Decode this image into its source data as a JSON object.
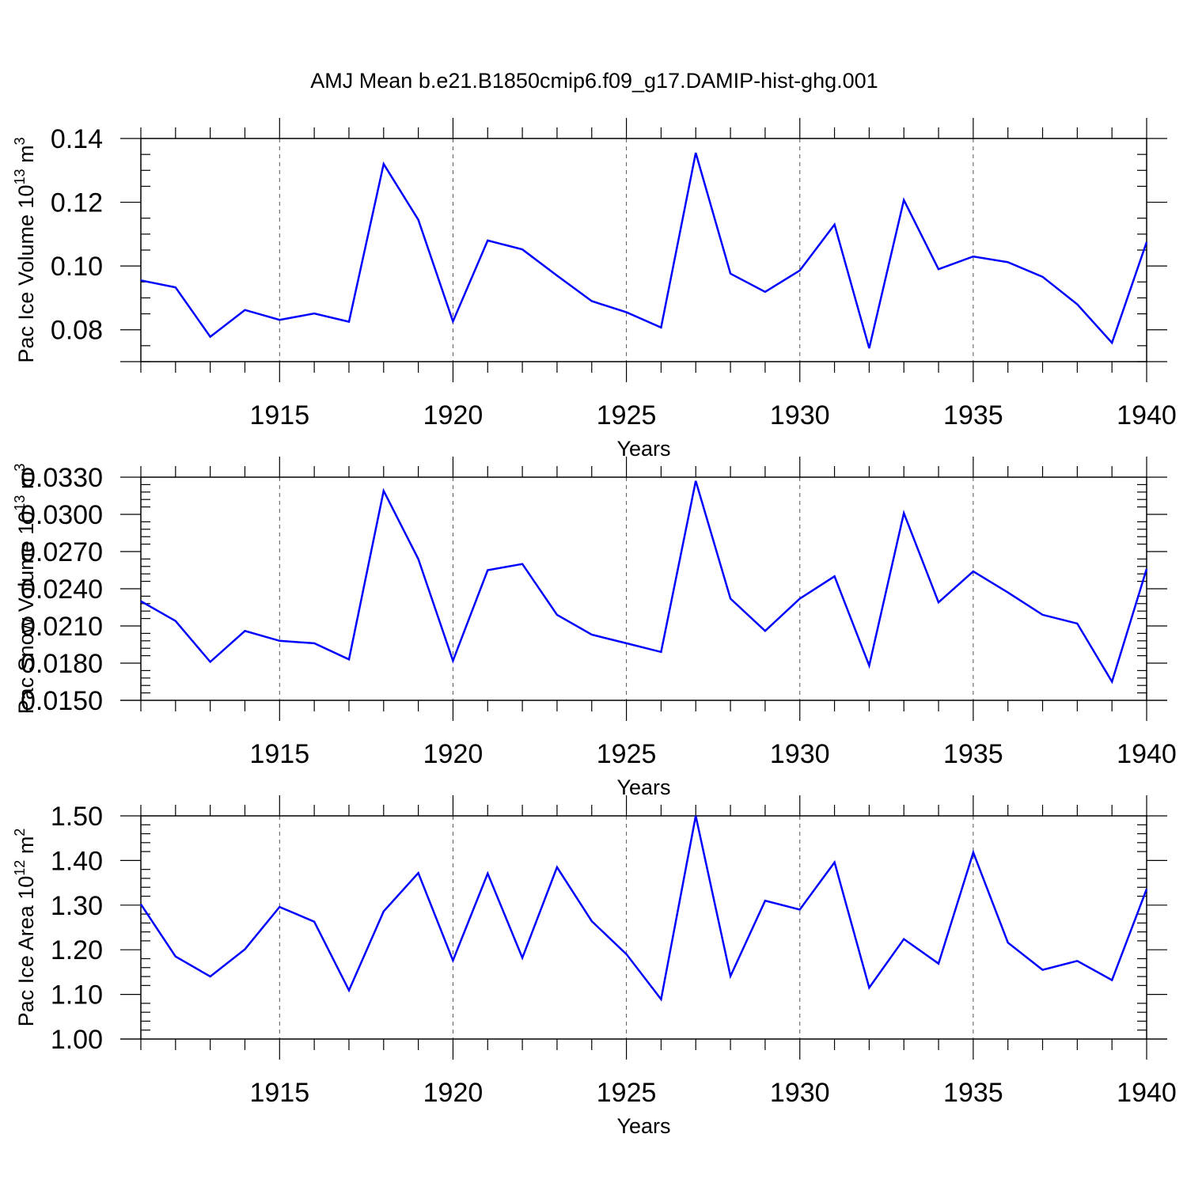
{
  "title": "AMJ Mean b.e21.B1850cmip6.f09_g17.DAMIP-hist-ghg.001",
  "series_color": "#0000ff",
  "chart_data": [
    {
      "type": "line",
      "ylabel": "Pac Ice Volume 10",
      "ylabel_exp": "13",
      "ylabel_unit": " m",
      "ylabel_unit_exp": "3",
      "xlabel": "Years",
      "xlim": [
        1911,
        1940
      ],
      "ylim": [
        0.07,
        0.14
      ],
      "yticks": [
        0.08,
        0.1,
        0.12,
        0.14
      ],
      "ytick_labels": [
        "0.08",
        "0.10",
        "0.12",
        "0.14"
      ],
      "yminor": 0.005,
      "xticks": [
        1915,
        1920,
        1925,
        1930,
        1935,
        1940
      ],
      "xtick_labels": [
        "1915",
        "1920",
        "1925",
        "1930",
        "1935",
        "1940"
      ],
      "x": [
        1911,
        1912,
        1913,
        1914,
        1915,
        1916,
        1917,
        1918,
        1919,
        1920,
        1921,
        1922,
        1923,
        1924,
        1925,
        1926,
        1927,
        1928,
        1929,
        1930,
        1931,
        1932,
        1933,
        1934,
        1935,
        1936,
        1937,
        1938,
        1939,
        1940
      ],
      "values": [
        0.0955,
        0.0933,
        0.0778,
        0.0862,
        0.0831,
        0.0851,
        0.0825,
        0.132,
        0.1145,
        0.0826,
        0.108,
        0.1052,
        0.097,
        0.089,
        0.0855,
        0.0807,
        0.1355,
        0.0976,
        0.0919,
        0.0986,
        0.113,
        0.0742,
        0.1207,
        0.099,
        0.103,
        0.1012,
        0.0966,
        0.088,
        0.0759,
        0.1075
      ]
    },
    {
      "type": "line",
      "ylabel": "Pac Snow Volume 10",
      "ylabel_exp": "13",
      "ylabel_unit": " m",
      "ylabel_unit_exp": "3",
      "xlabel": "Years",
      "xlim": [
        1911,
        1940
      ],
      "ylim": [
        0.015,
        0.033
      ],
      "yticks": [
        0.015,
        0.018,
        0.021,
        0.024,
        0.027,
        0.03,
        0.033
      ],
      "ytick_labels": [
        "0.0150",
        "0.0180",
        "0.0210",
        "0.0240",
        "0.0270",
        "0.0300",
        "0.0330"
      ],
      "yminor": 0.0006,
      "xticks": [
        1915,
        1920,
        1925,
        1930,
        1935,
        1940
      ],
      "xtick_labels": [
        "1915",
        "1920",
        "1925",
        "1930",
        "1935",
        "1940"
      ],
      "x": [
        1911,
        1912,
        1913,
        1914,
        1915,
        1916,
        1917,
        1918,
        1919,
        1920,
        1921,
        1922,
        1923,
        1924,
        1925,
        1926,
        1927,
        1928,
        1929,
        1930,
        1931,
        1932,
        1933,
        1934,
        1935,
        1936,
        1937,
        1938,
        1939,
        1940
      ],
      "values": [
        0.023,
        0.0214,
        0.0181,
        0.0206,
        0.0198,
        0.0196,
        0.0183,
        0.0319,
        0.0264,
        0.0182,
        0.0255,
        0.026,
        0.0219,
        0.0203,
        0.0196,
        0.0189,
        0.0327,
        0.0232,
        0.0206,
        0.0232,
        0.025,
        0.0178,
        0.0301,
        0.0229,
        0.0254,
        0.0237,
        0.0219,
        0.0212,
        0.0165,
        0.0256
      ]
    },
    {
      "type": "line",
      "ylabel": "Pac Ice Area 10",
      "ylabel_exp": "12",
      "ylabel_unit": " m",
      "ylabel_unit_exp": "2",
      "xlabel": "Years",
      "xlim": [
        1911,
        1940
      ],
      "ylim": [
        1.0,
        1.5
      ],
      "yticks": [
        1.0,
        1.1,
        1.2,
        1.3,
        1.4,
        1.5
      ],
      "ytick_labels": [
        "1.00",
        "1.10",
        "1.20",
        "1.30",
        "1.40",
        "1.50"
      ],
      "yminor": 0.02,
      "xticks": [
        1915,
        1920,
        1925,
        1930,
        1935,
        1940
      ],
      "xtick_labels": [
        "1915",
        "1920",
        "1925",
        "1930",
        "1935",
        "1940"
      ],
      "x": [
        1911,
        1912,
        1913,
        1914,
        1915,
        1916,
        1917,
        1918,
        1919,
        1920,
        1921,
        1922,
        1923,
        1924,
        1925,
        1926,
        1927,
        1928,
        1929,
        1930,
        1931,
        1932,
        1933,
        1934,
        1935,
        1936,
        1937,
        1938,
        1939,
        1940
      ],
      "values": [
        1.302,
        1.185,
        1.14,
        1.201,
        1.296,
        1.263,
        1.109,
        1.286,
        1.372,
        1.176,
        1.371,
        1.182,
        1.385,
        1.264,
        1.19,
        1.089,
        1.5,
        1.141,
        1.31,
        1.29,
        1.396,
        1.115,
        1.224,
        1.169,
        1.418,
        1.216,
        1.155,
        1.175,
        1.132,
        1.336
      ]
    }
  ]
}
